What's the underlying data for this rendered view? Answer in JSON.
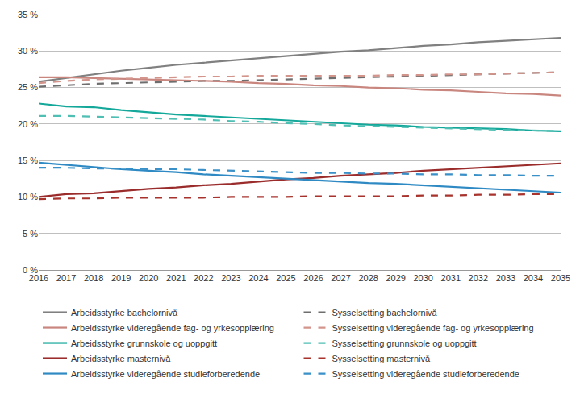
{
  "chart_data": {
    "type": "line",
    "x": [
      2016,
      2017,
      2018,
      2019,
      2020,
      2021,
      2022,
      2023,
      2024,
      2025,
      2026,
      2027,
      2028,
      2029,
      2030,
      2031,
      2032,
      2033,
      2034,
      2035
    ],
    "xlim": [
      2016,
      2035
    ],
    "xticks": [
      2016,
      2017,
      2018,
      2019,
      2020,
      2021,
      2022,
      2023,
      2024,
      2025,
      2026,
      2027,
      2028,
      2029,
      2030,
      2031,
      2032,
      2033,
      2034,
      2035
    ],
    "ylim": [
      0,
      35
    ],
    "yticks": [
      {
        "value": 0,
        "label": "0 %"
      },
      {
        "value": 5,
        "label": "5 %"
      },
      {
        "value": 10,
        "label": "10 %"
      },
      {
        "value": 15,
        "label": "15 %"
      },
      {
        "value": 20,
        "label": "20 %"
      },
      {
        "value": 25,
        "label": "25 %"
      },
      {
        "value": 30,
        "label": "30 %"
      },
      {
        "value": 35,
        "label": "35 %"
      }
    ],
    "grid": true,
    "legend": "bottom",
    "series": [
      {
        "name": "Arbeidsstyrke bachelornivå",
        "color": "#808080",
        "line_style": "solid",
        "values": [
          25.8,
          26.3,
          26.8,
          27.3,
          27.7,
          28.1,
          28.4,
          28.7,
          29.0,
          29.3,
          29.6,
          29.9,
          30.1,
          30.4,
          30.7,
          30.9,
          31.2,
          31.4,
          31.6,
          31.8
        ]
      },
      {
        "name": "Sysselsetting bachelornivå",
        "color": "#6e6e6e",
        "line_style": "dash",
        "values": [
          25.1,
          25.3,
          25.5,
          25.6,
          25.7,
          25.8,
          25.9,
          25.9,
          26.0,
          26.1,
          26.2,
          26.3,
          26.4,
          26.5,
          26.6,
          26.7,
          26.8,
          26.9,
          27.0,
          27.1
        ]
      },
      {
        "name": "Arbeidsstyrke videregående fag- og yrkesopplæring",
        "color": "#c9867f",
        "line_style": "solid",
        "values": [
          26.4,
          26.4,
          26.3,
          26.2,
          26.1,
          26.0,
          25.9,
          25.8,
          25.6,
          25.5,
          25.3,
          25.2,
          25.0,
          24.9,
          24.7,
          24.6,
          24.4,
          24.2,
          24.1,
          23.9
        ]
      },
      {
        "name": "Sysselsetting videregående fag- og yrkesopplæring",
        "color": "#d3948c",
        "line_style": "dash",
        "values": [
          25.6,
          25.9,
          26.1,
          26.2,
          26.3,
          26.4,
          26.5,
          26.5,
          26.6,
          26.6,
          26.6,
          26.6,
          26.6,
          26.7,
          26.7,
          26.8,
          26.8,
          26.9,
          27.0,
          27.1
        ]
      },
      {
        "name": "Arbeidsstyrke grunnskole og uoppgitt",
        "color": "#14a89b",
        "line_style": "solid",
        "values": [
          22.8,
          22.4,
          22.3,
          21.9,
          21.6,
          21.3,
          21.1,
          20.9,
          20.7,
          20.5,
          20.3,
          20.1,
          19.9,
          19.8,
          19.6,
          19.5,
          19.4,
          19.3,
          19.1,
          19.0
        ]
      },
      {
        "name": "Sysselsetting grunnskole og uoppgitt",
        "color": "#4fbfb3",
        "line_style": "dash",
        "values": [
          21.1,
          21.1,
          21.0,
          20.9,
          20.8,
          20.7,
          20.6,
          20.4,
          20.3,
          20.1,
          20.0,
          19.8,
          19.7,
          19.6,
          19.5,
          19.4,
          19.3,
          19.2,
          19.1,
          19.0
        ]
      },
      {
        "name": "Arbeidsstyrke masternivå",
        "color": "#9b2c2c",
        "line_style": "solid",
        "values": [
          10.0,
          10.4,
          10.5,
          10.8,
          11.1,
          11.3,
          11.6,
          11.8,
          12.1,
          12.4,
          12.6,
          12.9,
          13.1,
          13.3,
          13.6,
          13.8,
          14.0,
          14.2,
          14.4,
          14.6
        ]
      },
      {
        "name": "Sysselsetting masternivå",
        "color": "#a8332c",
        "line_style": "dash",
        "values": [
          9.7,
          9.8,
          9.8,
          9.9,
          9.9,
          9.9,
          9.9,
          10.0,
          10.0,
          10.0,
          10.1,
          10.1,
          10.1,
          10.1,
          10.2,
          10.2,
          10.3,
          10.3,
          10.4,
          10.4
        ]
      },
      {
        "name": "Arbeidsstyrke videregående studieforberedende",
        "color": "#2f8ac4",
        "line_style": "solid",
        "values": [
          14.7,
          14.4,
          14.1,
          13.8,
          13.6,
          13.4,
          13.1,
          12.9,
          12.7,
          12.5,
          12.3,
          12.1,
          11.9,
          11.8,
          11.6,
          11.4,
          11.2,
          11.0,
          10.8,
          10.6
        ]
      },
      {
        "name": "Sysselsetting videregående studieforberedende",
        "color": "#3a90c8",
        "line_style": "dash",
        "values": [
          14.0,
          14.0,
          13.9,
          13.9,
          13.8,
          13.8,
          13.7,
          13.6,
          13.5,
          13.4,
          13.3,
          13.3,
          13.2,
          13.2,
          13.1,
          13.1,
          13.0,
          13.0,
          12.9,
          12.9
        ]
      }
    ]
  }
}
